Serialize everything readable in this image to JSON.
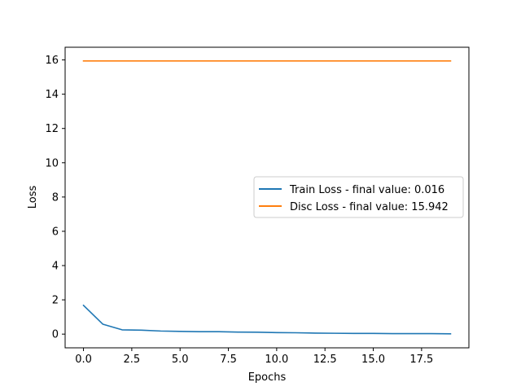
{
  "chart_data": {
    "type": "line",
    "title": "",
    "xlabel": "Epochs",
    "ylabel": "Loss",
    "xlim": [
      -0.95,
      19.95
    ],
    "ylim": [
      -0.8,
      16.74
    ],
    "xticks": [
      0.0,
      2.5,
      5.0,
      7.5,
      10.0,
      12.5,
      15.0,
      17.5
    ],
    "xtick_labels": [
      "0.0",
      "2.5",
      "5.0",
      "7.5",
      "10.0",
      "12.5",
      "15.0",
      "17.5"
    ],
    "yticks": [
      0,
      2,
      4,
      6,
      8,
      10,
      12,
      14,
      16
    ],
    "ytick_labels": [
      "0",
      "2",
      "4",
      "6",
      "8",
      "10",
      "12",
      "14",
      "16"
    ],
    "grid": false,
    "legend_position": "center-right",
    "x": [
      0,
      1,
      2,
      3,
      4,
      5,
      6,
      7,
      8,
      9,
      10,
      11,
      12,
      13,
      14,
      15,
      16,
      17,
      18,
      19
    ],
    "series": [
      {
        "name": "Train Loss - final value: 0.016",
        "color": "#1f77b4",
        "values": [
          1.68,
          0.58,
          0.25,
          0.23,
          0.18,
          0.16,
          0.14,
          0.14,
          0.12,
          0.11,
          0.09,
          0.08,
          0.06,
          0.05,
          0.04,
          0.04,
          0.03,
          0.03,
          0.03,
          0.016
        ]
      },
      {
        "name": "Disc Loss - final value: 15.942",
        "color": "#ff7f0e",
        "values": [
          15.942,
          15.942,
          15.942,
          15.942,
          15.942,
          15.942,
          15.942,
          15.942,
          15.942,
          15.942,
          15.942,
          15.942,
          15.942,
          15.942,
          15.942,
          15.942,
          15.942,
          15.942,
          15.942,
          15.942
        ]
      }
    ]
  }
}
